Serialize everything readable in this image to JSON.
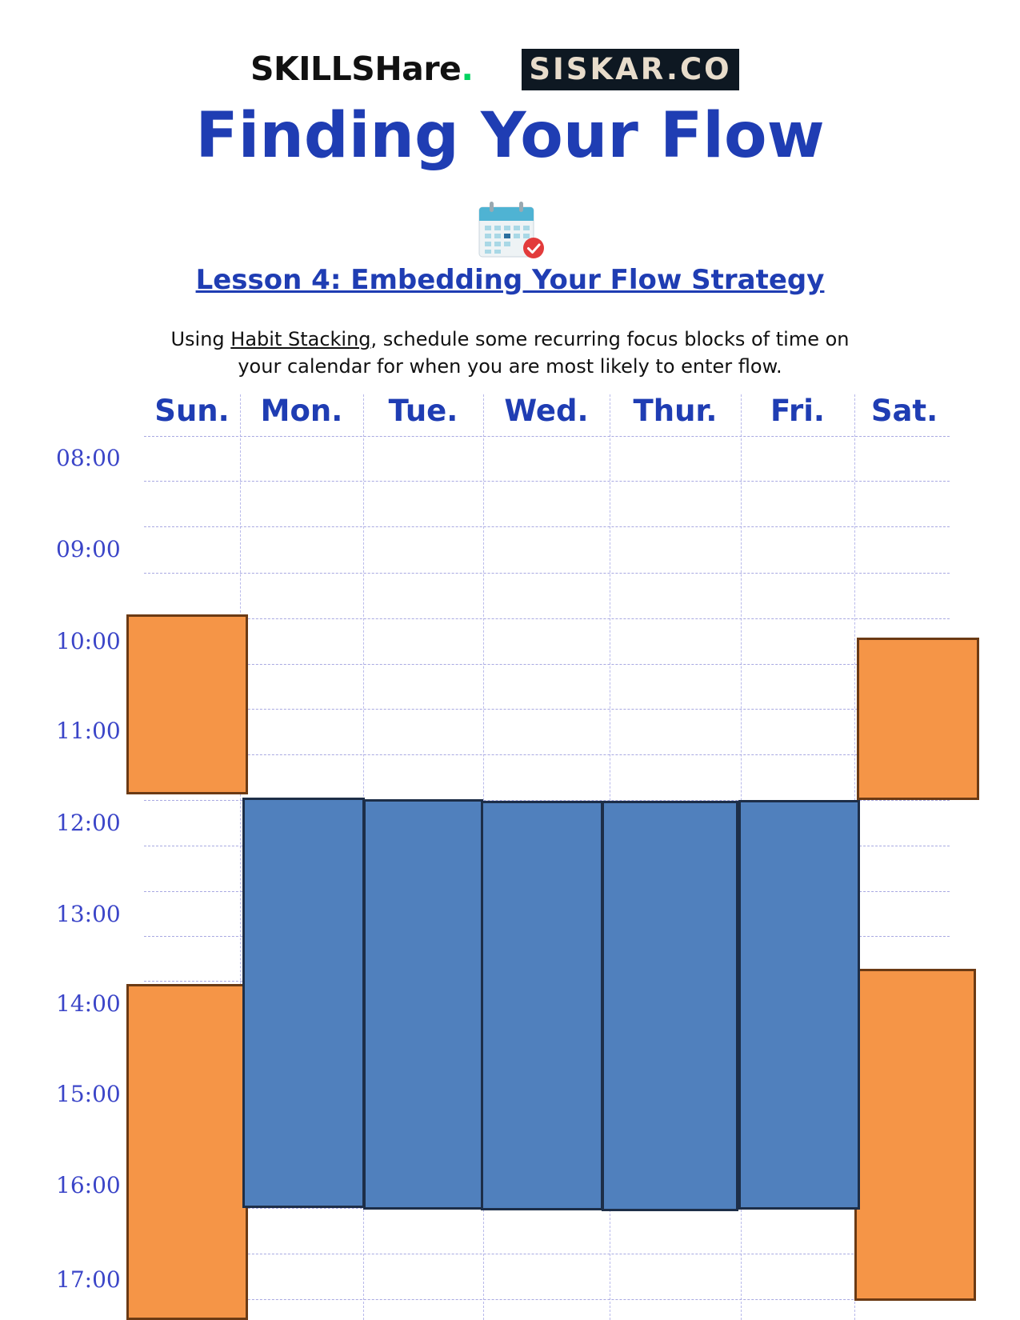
{
  "brands": {
    "skillshare": "SKILLSHare",
    "skillshare_dot": ".",
    "siskar": "SISKAR.CO"
  },
  "title": "Finding Your Flow",
  "icons": {
    "calendar": "calendar-check-icon"
  },
  "lesson": {
    "heading": "Lesson 4: Embedding Your Flow Strategy",
    "text_before": "Using ",
    "link_text": "Habit Stacking",
    "text_after": ", schedule some recurring focus blocks of time on your calendar for when you are most likely to enter flow."
  },
  "calendar": {
    "days": [
      "Sun.",
      "Mon.",
      "Tue.",
      "Wed.",
      "Thur.",
      "Fri.",
      "Sat."
    ],
    "hours": [
      "08:00",
      "09:00",
      "10:00",
      "11:00",
      "12:00",
      "13:00",
      "14:00",
      "15:00",
      "16:00",
      "17:00"
    ],
    "colors": {
      "weekend_block": "#f59547",
      "weekday_block": "#5080bd",
      "heading": "#1f3db3",
      "hour_label": "#3b45c8"
    }
  }
}
